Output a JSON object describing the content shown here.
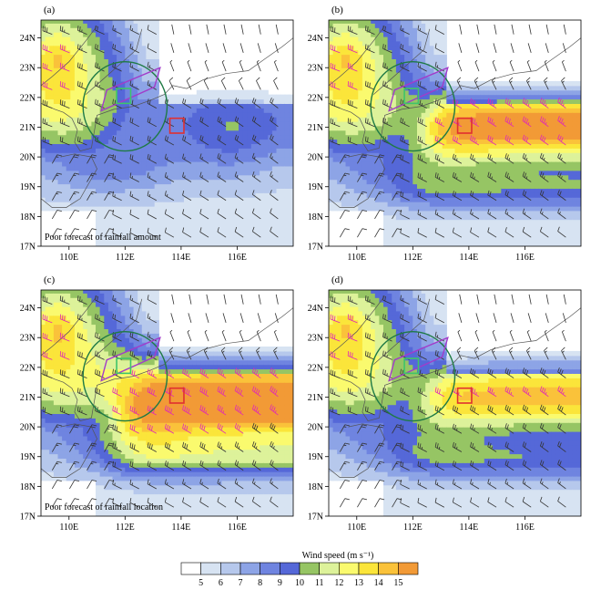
{
  "colors": {
    "scale": [
      "#ffffff",
      "#d7e3f2",
      "#b6c8ec",
      "#8da4e6",
      "#6f84e0",
      "#5568d8",
      "#96c564",
      "#ddf29a",
      "#fafa6e",
      "#fbe53a",
      "#fac23a",
      "#f29a36"
    ],
    "circle": "#1f7a45",
    "purple_box": "#a23cc9",
    "green_box": "#3fc46a",
    "red_box": "#e03030",
    "barb_strong": "#e026b8",
    "barb_normal": "#333333",
    "coast": "#555555"
  },
  "chart_data": [
    {
      "type": "heatmap",
      "panel": "(a)",
      "annotation": "Poor forecast of rainfall amount",
      "x_ticks": [
        "110E",
        "112E",
        "114E",
        "116E"
      ],
      "y_ticks": [
        "24N",
        "23N",
        "22N",
        "21N",
        "20N",
        "19N",
        "18N",
        "17N"
      ],
      "xlim": [
        109,
        118
      ],
      "ylim": [
        17,
        24.6
      ],
      "jet": "none",
      "speed_field": [
        {
          "lon": 110.0,
          "lat": 22.8,
          "speed": 13
        },
        {
          "lon": 112.5,
          "lat": 21.0,
          "speed": 9
        },
        {
          "lon": 114.5,
          "lat": 20.5,
          "speed": 7
        },
        {
          "lon": 116.5,
          "lat": 20.5,
          "speed": 6
        }
      ]
    },
    {
      "type": "heatmap",
      "panel": "(b)",
      "annotation": "",
      "x_ticks": [
        "110E",
        "112E",
        "114E",
        "116E"
      ],
      "y_ticks": [
        "24N",
        "23N",
        "22N",
        "21N",
        "20N",
        "19N",
        "18N",
        "17N"
      ],
      "xlim": [
        109,
        118
      ],
      "ylim": [
        17,
        24.6
      ],
      "jet": "east",
      "speed_field": [
        {
          "lon": 110.0,
          "lat": 22.8,
          "speed": 12
        },
        {
          "lon": 115.5,
          "lat": 21.0,
          "speed": 13
        },
        {
          "lon": 113.0,
          "lat": 20.0,
          "speed": 11
        },
        {
          "lon": 114.0,
          "lat": 18.8,
          "speed": 9
        }
      ]
    },
    {
      "type": "heatmap",
      "panel": "(c)",
      "annotation": "Poor forecast of rainfall location",
      "x_ticks": [
        "110E",
        "112E",
        "114E",
        "116E"
      ],
      "y_ticks": [
        "24N",
        "23N",
        "22N",
        "21N",
        "20N",
        "19N",
        "18N",
        "17N"
      ],
      "xlim": [
        109,
        118
      ],
      "ylim": [
        17,
        24.6
      ],
      "jet": "broad",
      "speed_field": [
        {
          "lon": 110.0,
          "lat": 22.8,
          "speed": 13
        },
        {
          "lon": 115.5,
          "lat": 21.0,
          "speed": 13
        },
        {
          "lon": 112.5,
          "lat": 20.0,
          "speed": 11
        },
        {
          "lon": 113.5,
          "lat": 18.5,
          "speed": 9
        }
      ]
    },
    {
      "type": "heatmap",
      "panel": "(d)",
      "annotation": "",
      "x_ticks": [
        "110E",
        "112E",
        "114E",
        "116E"
      ],
      "y_ticks": [
        "24N",
        "23N",
        "22N",
        "21N",
        "20N",
        "19N",
        "18N",
        "17N"
      ],
      "xlim": [
        109,
        118
      ],
      "ylim": [
        17,
        24.6
      ],
      "jet": "east-weak",
      "speed_field": [
        {
          "lon": 110.0,
          "lat": 22.8,
          "speed": 12
        },
        {
          "lon": 115.5,
          "lat": 21.0,
          "speed": 11
        },
        {
          "lon": 113.0,
          "lat": 20.0,
          "speed": 10
        },
        {
          "lon": 114.0,
          "lat": 18.8,
          "speed": 9
        }
      ]
    }
  ],
  "colorbar": {
    "title": "Wind speed (m s⁻¹)",
    "labels": [
      "5",
      "6",
      "7",
      "8",
      "9",
      "10",
      "11",
      "12",
      "13",
      "14",
      "15"
    ]
  }
}
